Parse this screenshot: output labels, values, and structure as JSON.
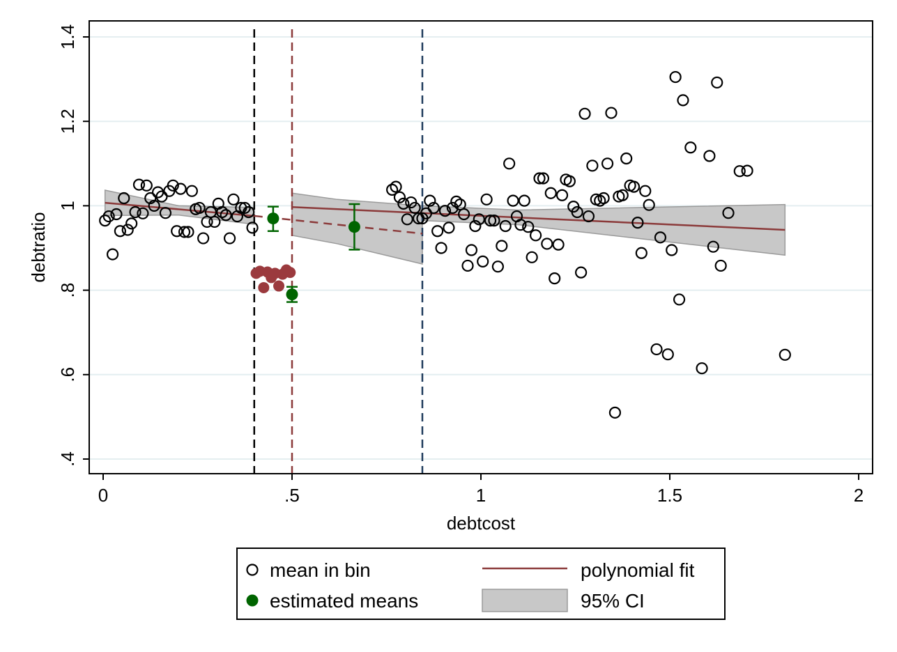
{
  "chart_data": {
    "type": "scatter",
    "xlabel": "debtcost",
    "ylabel": "debtratio",
    "xlim": [
      0,
      2
    ],
    "ylim": [
      0.4,
      1.4
    ],
    "x_ticks": [
      0,
      0.5,
      1,
      1.5,
      2
    ],
    "x_tick_labels": [
      "0",
      ".5",
      "1",
      "1.5",
      "2"
    ],
    "y_ticks": [
      0.4,
      0.6,
      0.8,
      1.0,
      1.2,
      1.4
    ],
    "y_tick_labels": [
      ".4",
      ".6",
      ".8",
      "1",
      "1.2",
      "1.4"
    ],
    "grid": "horizontal",
    "legend_position": "bottom",
    "colors": {
      "mean_in_bin": "#000000",
      "estimated_means": "#006400",
      "polynomial_fit": "#8b3a3a",
      "ci_fill": "#c8c8c8",
      "bunching_points": "#9b3a3e",
      "vline_black": "#000000",
      "vline_red": "#8b3a3a",
      "vline_blue": "#1f3b5c"
    },
    "vertical_lines": [
      {
        "x": 0.4,
        "color": "#000000"
      },
      {
        "x": 0.5,
        "color": "#8b3a3a"
      },
      {
        "x": 0.845,
        "color": "#1f3b5c"
      }
    ],
    "series": [
      {
        "name": "mean in bin",
        "marker": "hollow-circle",
        "points": [
          [
            0.005,
            0.965
          ],
          [
            0.015,
            0.975
          ],
          [
            0.025,
            0.885
          ],
          [
            0.035,
            0.98
          ],
          [
            0.045,
            0.94
          ],
          [
            0.055,
            1.018
          ],
          [
            0.065,
            0.943
          ],
          [
            0.075,
            0.958
          ],
          [
            0.085,
            0.985
          ],
          [
            0.095,
            1.05
          ],
          [
            0.105,
            0.982
          ],
          [
            0.115,
            1.048
          ],
          [
            0.125,
            1.018
          ],
          [
            0.135,
            1.0
          ],
          [
            0.145,
            1.032
          ],
          [
            0.155,
            1.022
          ],
          [
            0.165,
            0.983
          ],
          [
            0.175,
            1.035
          ],
          [
            0.185,
            1.048
          ],
          [
            0.195,
            0.94
          ],
          [
            0.205,
            1.04
          ],
          [
            0.215,
            0.938
          ],
          [
            0.225,
            0.938
          ],
          [
            0.235,
            1.035
          ],
          [
            0.245,
            0.992
          ],
          [
            0.255,
            0.995
          ],
          [
            0.265,
            0.923
          ],
          [
            0.275,
            0.962
          ],
          [
            0.285,
            0.985
          ],
          [
            0.295,
            0.962
          ],
          [
            0.305,
            1.005
          ],
          [
            0.315,
            0.985
          ],
          [
            0.325,
            0.978
          ],
          [
            0.335,
            0.923
          ],
          [
            0.345,
            1.015
          ],
          [
            0.355,
            0.975
          ],
          [
            0.365,
            0.995
          ],
          [
            0.375,
            0.995
          ],
          [
            0.385,
            0.985
          ],
          [
            0.395,
            0.948
          ],
          [
            0.765,
            1.038
          ],
          [
            0.775,
            1.045
          ],
          [
            0.785,
            1.02
          ],
          [
            0.795,
            1.005
          ],
          [
            0.805,
            0.968
          ],
          [
            0.815,
            1.008
          ],
          [
            0.825,
            0.995
          ],
          [
            0.835,
            0.97
          ],
          [
            0.845,
            0.97
          ],
          [
            0.855,
            0.982
          ],
          [
            0.865,
            1.012
          ],
          [
            0.875,
            0.995
          ],
          [
            0.885,
            0.94
          ],
          [
            0.895,
            0.9
          ],
          [
            0.905,
            0.988
          ],
          [
            0.915,
            0.948
          ],
          [
            0.925,
            0.995
          ],
          [
            0.935,
            1.01
          ],
          [
            0.945,
            1.003
          ],
          [
            0.955,
            0.98
          ],
          [
            0.965,
            0.858
          ],
          [
            0.975,
            0.895
          ],
          [
            0.985,
            0.952
          ],
          [
            0.995,
            0.968
          ],
          [
            1.005,
            0.868
          ],
          [
            1.015,
            1.015
          ],
          [
            1.025,
            0.965
          ],
          [
            1.035,
            0.965
          ],
          [
            1.045,
            0.856
          ],
          [
            1.055,
            0.905
          ],
          [
            1.065,
            0.952
          ],
          [
            1.075,
            1.1
          ],
          [
            1.085,
            1.012
          ],
          [
            1.095,
            0.975
          ],
          [
            1.105,
            0.955
          ],
          [
            1.115,
            1.012
          ],
          [
            1.125,
            0.95
          ],
          [
            1.135,
            0.878
          ],
          [
            1.145,
            0.93
          ],
          [
            1.155,
            1.065
          ],
          [
            1.165,
            1.065
          ],
          [
            1.175,
            0.91
          ],
          [
            1.185,
            1.03
          ],
          [
            1.195,
            0.828
          ],
          [
            1.205,
            0.908
          ],
          [
            1.215,
            1.025
          ],
          [
            1.225,
            1.062
          ],
          [
            1.235,
            1.058
          ],
          [
            1.245,
            0.998
          ],
          [
            1.255,
            0.985
          ],
          [
            1.265,
            0.842
          ],
          [
            1.275,
            1.218
          ],
          [
            1.285,
            0.975
          ],
          [
            1.295,
            1.095
          ],
          [
            1.305,
            1.015
          ],
          [
            1.315,
            1.012
          ],
          [
            1.325,
            1.018
          ],
          [
            1.335,
            1.1
          ],
          [
            1.345,
            1.22
          ],
          [
            1.355,
            0.51
          ],
          [
            1.365,
            1.022
          ],
          [
            1.375,
            1.025
          ],
          [
            1.385,
            1.112
          ],
          [
            1.395,
            1.048
          ],
          [
            1.405,
            1.045
          ],
          [
            1.415,
            0.96
          ],
          [
            1.425,
            0.888
          ],
          [
            1.435,
            1.035
          ],
          [
            1.445,
            1.002
          ],
          [
            1.465,
            0.66
          ],
          [
            1.475,
            0.925
          ],
          [
            1.495,
            0.648
          ],
          [
            1.505,
            0.895
          ],
          [
            1.515,
            1.305
          ],
          [
            1.525,
            0.778
          ],
          [
            1.535,
            1.25
          ],
          [
            1.555,
            1.138
          ],
          [
            1.585,
            0.615
          ],
          [
            1.605,
            1.118
          ],
          [
            1.615,
            0.903
          ],
          [
            1.625,
            1.292
          ],
          [
            1.635,
            0.858
          ],
          [
            1.655,
            0.983
          ],
          [
            1.685,
            1.082
          ],
          [
            1.705,
            1.083
          ],
          [
            1.805,
            0.647
          ]
        ]
      },
      {
        "name": "estimated means",
        "marker": "filled-circle-errorbar",
        "points": [
          {
            "x": 0.45,
            "y": 0.97,
            "lo": 0.94,
            "hi": 0.998
          },
          {
            "x": 0.5,
            "y": 0.79,
            "lo": 0.772,
            "hi": 0.808
          },
          {
            "x": 0.665,
            "y": 0.95,
            "lo": 0.896,
            "hi": 1.004
          }
        ]
      },
      {
        "name": "bunching",
        "marker": "filled-circle",
        "points": [
          [
            0.405,
            0.84
          ],
          [
            0.415,
            0.845
          ],
          [
            0.425,
            0.806
          ],
          [
            0.435,
            0.843
          ],
          [
            0.445,
            0.83
          ],
          [
            0.455,
            0.84
          ],
          [
            0.465,
            0.81
          ],
          [
            0.475,
            0.838
          ],
          [
            0.485,
            0.848
          ],
          [
            0.495,
            0.842
          ]
        ]
      },
      {
        "name": "polynomial fit",
        "marker": "line",
        "segments": [
          {
            "style": "solid",
            "points": [
              [
                0.005,
                1.007
              ],
              [
                0.4,
                0.976
              ]
            ]
          },
          {
            "style": "dashed",
            "points": [
              [
                0.4,
                0.976
              ],
              [
                0.845,
                0.934
              ]
            ]
          },
          {
            "style": "solid",
            "points": [
              [
                0.5,
                0.997
              ],
              [
                1.805,
                0.943
              ]
            ]
          }
        ]
      },
      {
        "name": "95% CI",
        "marker": "area",
        "bands": [
          {
            "x": [
              0.005,
              0.2,
              0.4
            ],
            "lower": [
              0.977,
              0.978,
              0.956
            ],
            "upper": [
              1.037,
              1.0,
              0.996
            ]
          },
          {
            "x": [
              0.5,
              0.62,
              0.845
            ],
            "lower": [
              0.93,
              0.91,
              0.862
            ],
            "upper": [
              1.03,
              1.015,
              1.0
            ]
          },
          {
            "x": [
              0.845,
              1.1,
              1.805
            ],
            "lower": [
              0.965,
              0.955,
              0.883
            ],
            "upper": [
              1.0,
              0.99,
              1.003
            ]
          }
        ]
      }
    ],
    "legend": {
      "items": [
        {
          "label": "mean in bin",
          "symbol": "hollow-circle"
        },
        {
          "label": "polynomial fit",
          "symbol": "line"
        },
        {
          "label": "estimated means",
          "symbol": "filled-circle"
        },
        {
          "label": "95% CI",
          "symbol": "area"
        }
      ]
    }
  }
}
